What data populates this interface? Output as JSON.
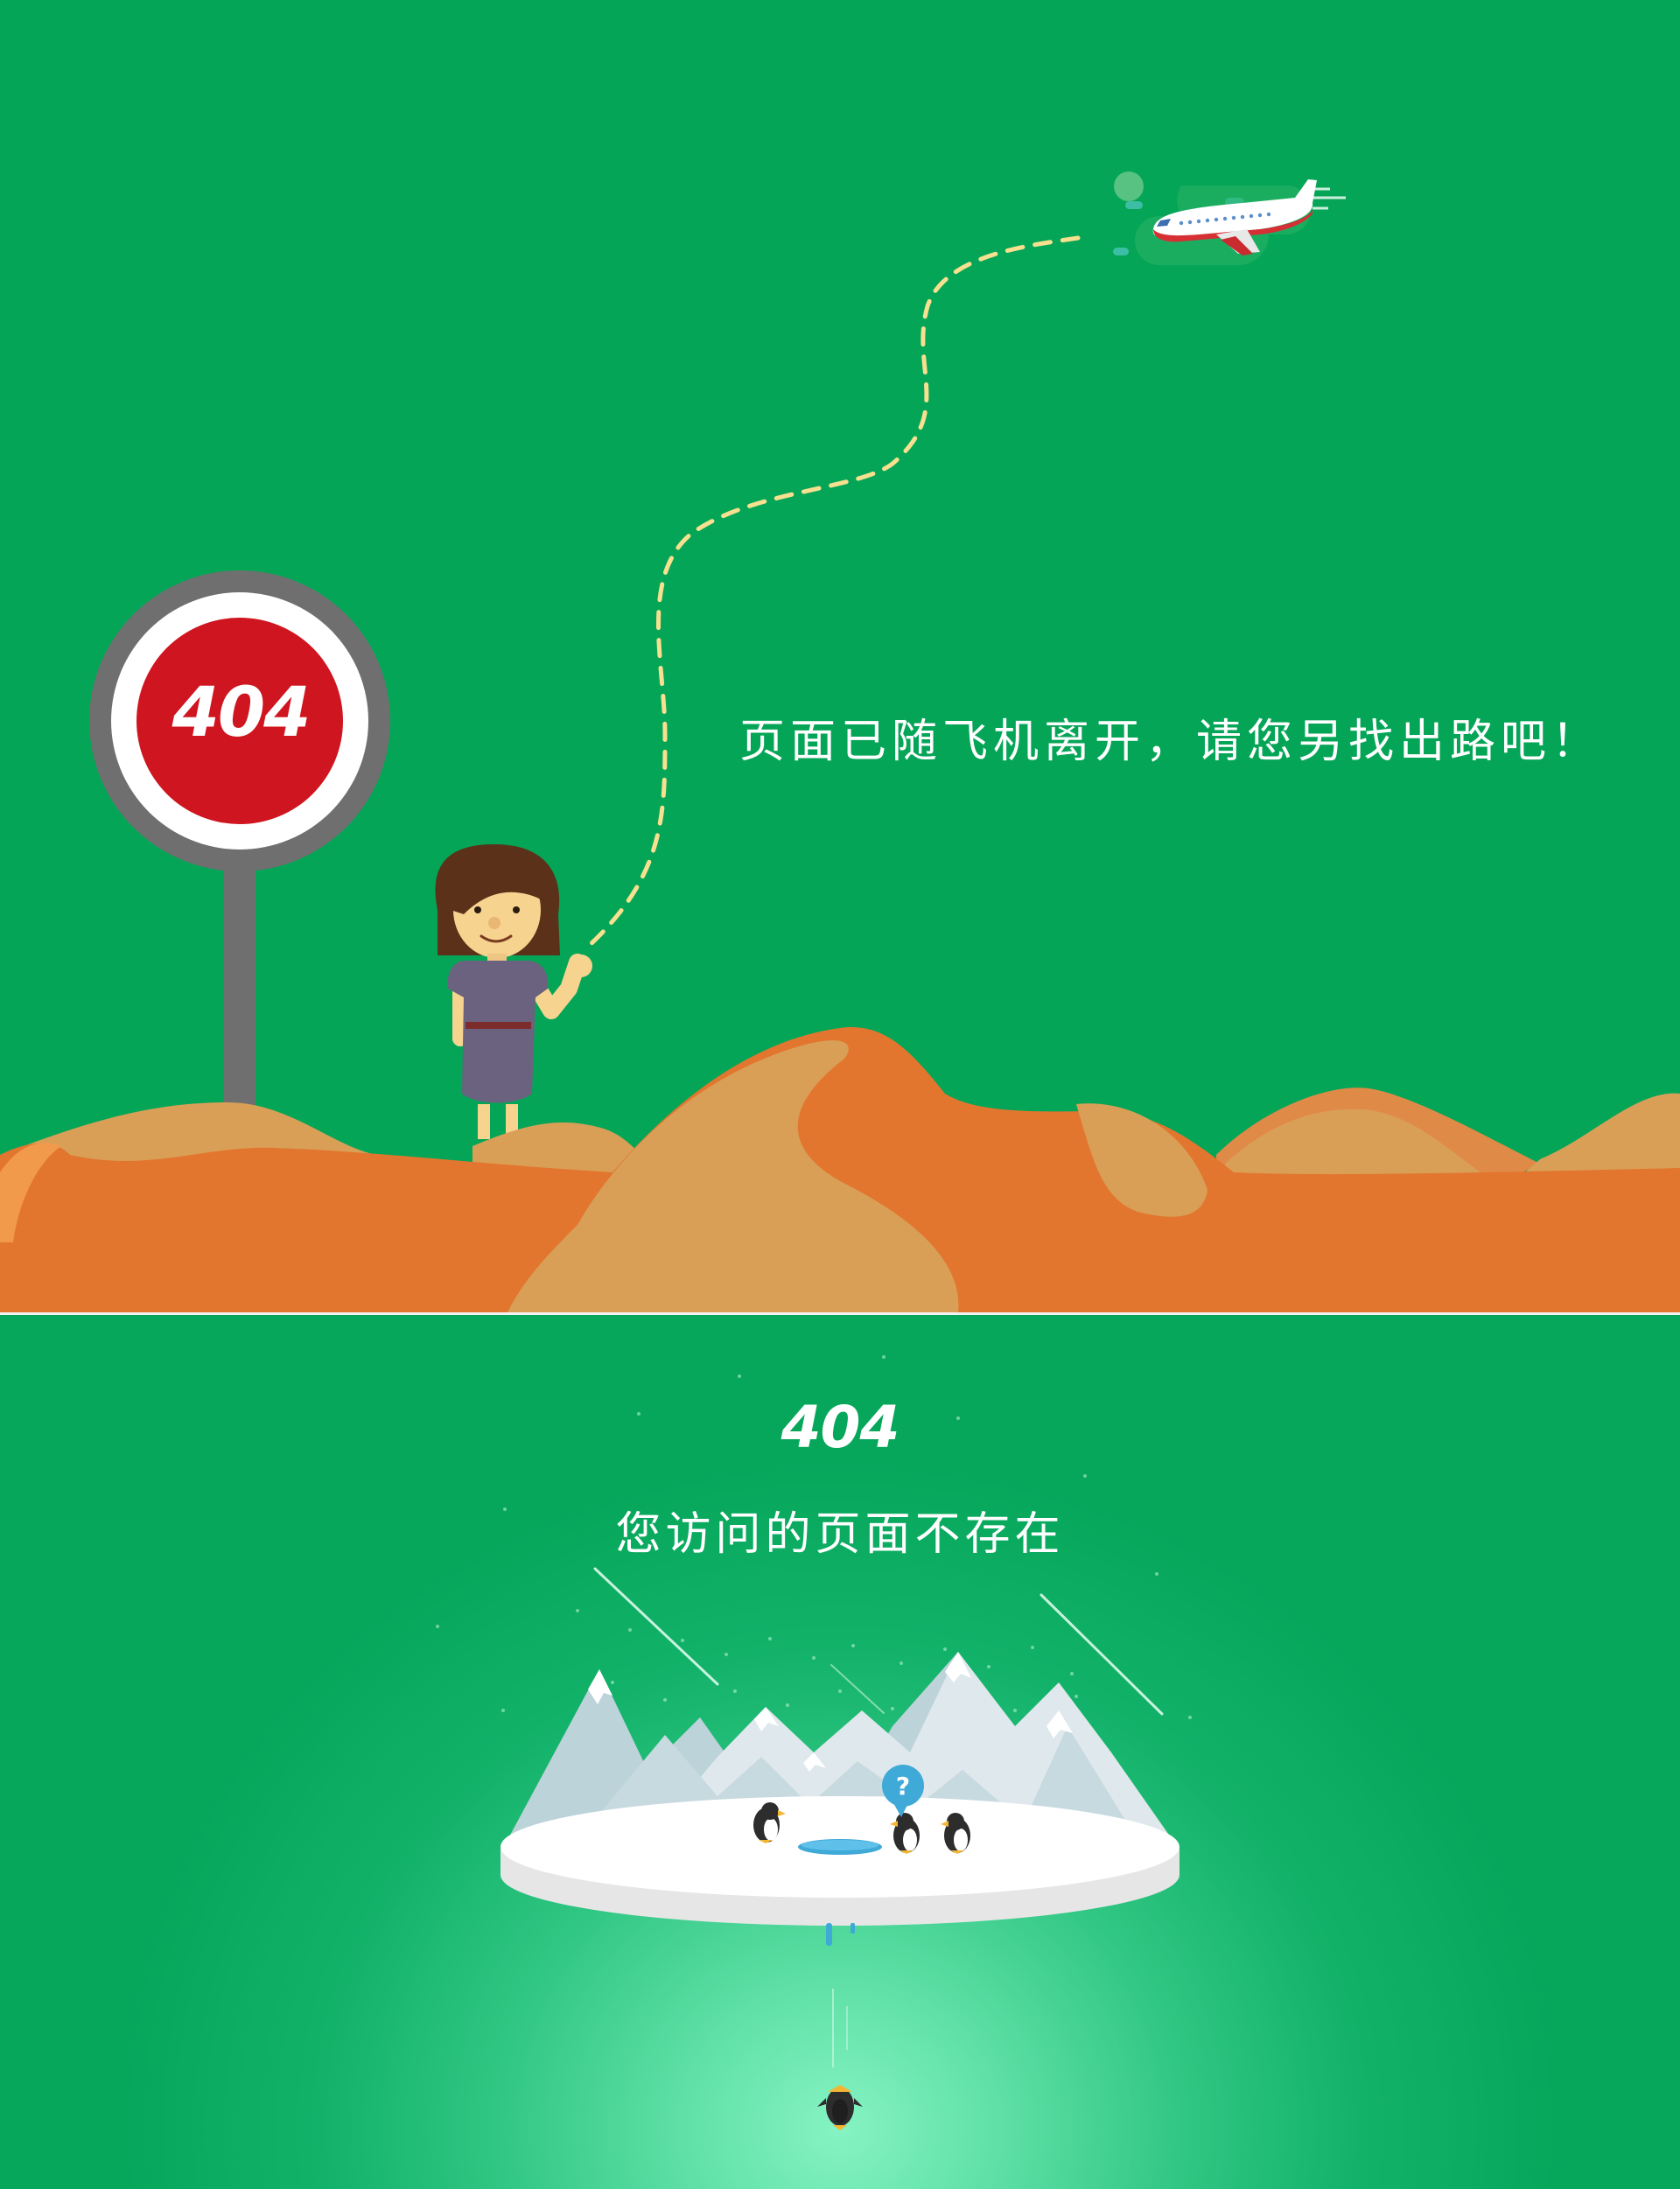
{
  "top_panel": {
    "sign_label": "404",
    "message": "页面已随飞机离开，请您另找出路吧！",
    "colors": {
      "background": "#05a557",
      "sign_red": "#cf151f",
      "sign_gray": "#6f6f6f",
      "dune_orange": "#e2762e",
      "dune_tan": "#d99f57",
      "flight_path": "#f7e08f"
    }
  },
  "bottom_panel": {
    "code": "404",
    "message": "您访问的页面不存在",
    "colors": {
      "glow": "#86f3c3",
      "ice": "#ffffff",
      "mountain": "#bcd3da",
      "water": "#3fa9d8"
    }
  },
  "icons": [
    "airplane-icon",
    "stop-sign-icon",
    "question-bubble-icon",
    "penguin-icon"
  ]
}
